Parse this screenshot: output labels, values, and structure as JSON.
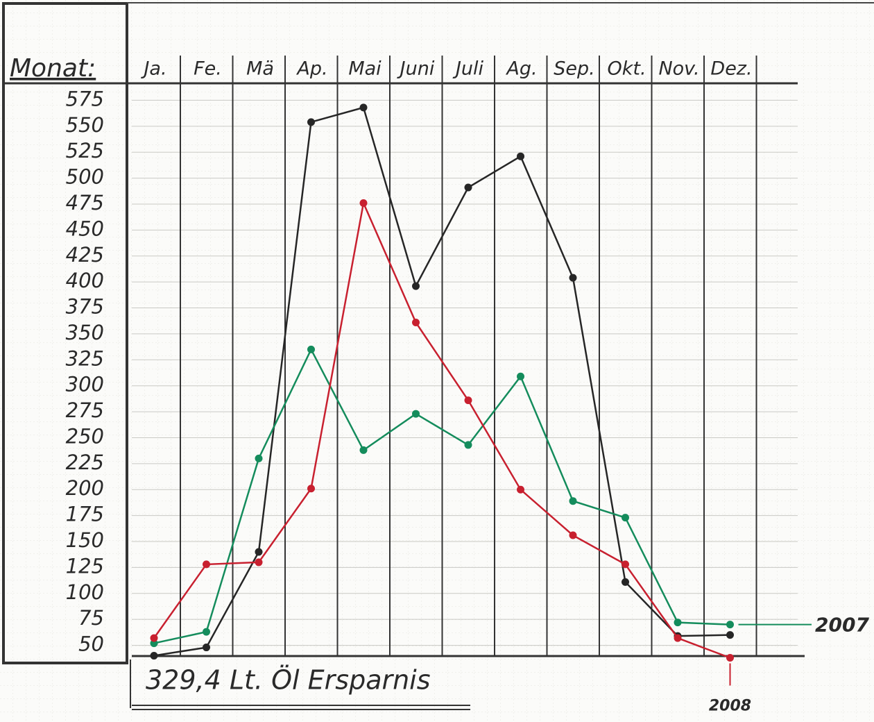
{
  "chart_data": {
    "type": "line",
    "y_label": "Monat:",
    "categories": [
      "Ja.",
      "Fe.",
      "Mä",
      "Ap.",
      "Mai",
      "Juni",
      "Juli",
      "Ag.",
      "Sep.",
      "Okt.",
      "Nov.",
      "Dez."
    ],
    "series": [
      {
        "color": "#262626",
        "values": [
          40,
          48,
          140,
          554,
          568,
          396,
          491,
          521,
          404,
          111,
          59,
          60
        ]
      },
      {
        "name": "2007",
        "color": "#148c5c",
        "values": [
          52,
          63,
          230,
          335,
          238,
          273,
          243,
          309,
          189,
          173,
          72,
          70
        ]
      },
      {
        "name": "2008",
        "color": "#c8202f",
        "values": [
          57,
          128,
          130,
          201,
          476,
          361,
          286,
          200,
          156,
          128,
          57,
          38
        ]
      }
    ],
    "ylim": [
      35,
      590
    ],
    "yticks": [
      50,
      75,
      100,
      125,
      150,
      175,
      200,
      225,
      250,
      275,
      300,
      325,
      350,
      375,
      400,
      425,
      450,
      475,
      500,
      525,
      550,
      575
    ],
    "grid": true,
    "annotation": "329,4 Lt. Öl Ersparnis"
  }
}
